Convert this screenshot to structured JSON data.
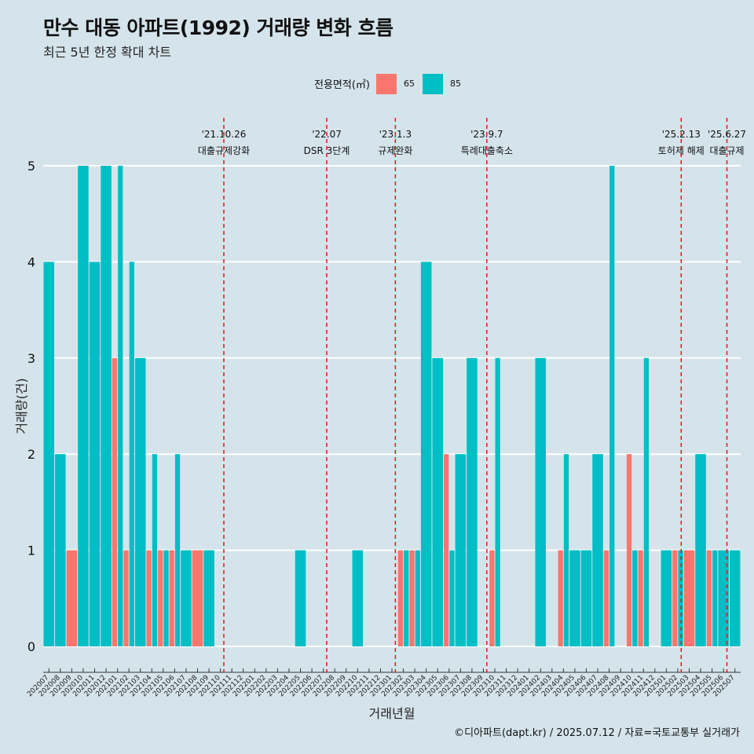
{
  "title": "만수 대동 아파트(1992) 거래량 변화 흐름",
  "subtitle": "최근 5년 한정 확대 차트",
  "caption": "©디아파트(dapt.kr) / 2025.07.12 / 자료=국토교통부 실거래가",
  "legend": {
    "title": "전용면적(㎡)",
    "items": [
      {
        "label": "65",
        "color": "#f8766d"
      },
      {
        "label": "85",
        "color": "#00bfc4"
      }
    ]
  },
  "chart_data": {
    "type": "bar",
    "xlabel": "거래년월",
    "ylabel": "거래량(건)",
    "ylim": [
      0,
      5
    ],
    "yticks": [
      "0",
      "1",
      "2",
      "3",
      "4",
      "5"
    ],
    "categories": [
      "202007",
      "202008",
      "202009",
      "202010",
      "202011",
      "202012",
      "202101",
      "202102",
      "202103",
      "202104",
      "202105",
      "202106",
      "202107",
      "202108",
      "202109",
      "202110",
      "202111",
      "202112",
      "202201",
      "202202",
      "202203",
      "202204",
      "202205",
      "202206",
      "202207",
      "202208",
      "202209",
      "202210",
      "202211",
      "202212",
      "202301",
      "202302",
      "202303",
      "202304",
      "202305",
      "202306",
      "202307",
      "202308",
      "202309",
      "202310",
      "202311",
      "202312",
      "202401",
      "202402",
      "202403",
      "202404",
      "202405",
      "202406",
      "202407",
      "202408",
      "202409",
      "202410",
      "202411",
      "202412",
      "202501",
      "202502",
      "202503",
      "202504",
      "202505",
      "202506",
      "202507"
    ],
    "series": [
      {
        "name": "65",
        "color": "#f8766d",
        "values": [
          0,
          0,
          1,
          0,
          0,
          0,
          3,
          1,
          0,
          1,
          1,
          1,
          0,
          1,
          0,
          0,
          0,
          0,
          0,
          0,
          0,
          0,
          0,
          0,
          0,
          0,
          0,
          0,
          0,
          0,
          0,
          1,
          1,
          0,
          0,
          2,
          0,
          0,
          0,
          1,
          0,
          0,
          0,
          0,
          0,
          1,
          0,
          0,
          0,
          1,
          0,
          2,
          1,
          0,
          0,
          1,
          1,
          0,
          1,
          0,
          0
        ]
      },
      {
        "name": "85",
        "color": "#00bfc4",
        "values": [
          4,
          2,
          0,
          5,
          4,
          5,
          5,
          4,
          3,
          2,
          1,
          2,
          1,
          0,
          1,
          0,
          0,
          0,
          0,
          0,
          0,
          0,
          1,
          0,
          0,
          0,
          0,
          1,
          0,
          0,
          0,
          1,
          1,
          4,
          3,
          1,
          2,
          3,
          0,
          3,
          0,
          0,
          0,
          3,
          0,
          2,
          1,
          1,
          2,
          5,
          0,
          1,
          3,
          0,
          1,
          1,
          0,
          2,
          1,
          1,
          1
        ]
      }
    ],
    "events": [
      {
        "date": "'21.10.26",
        "label": "대출규제강화",
        "after": "202110"
      },
      {
        "date": "'22.07",
        "label": "DSR 3단계",
        "after": "202207"
      },
      {
        "date": "'23.1.3",
        "label": "규제완화",
        "after": "202301"
      },
      {
        "date": "'23.9.7",
        "label": "특례대출축소",
        "after": "202309"
      },
      {
        "date": "'25.2.13",
        "label": "토허제 해제",
        "after": "202502"
      },
      {
        "date": "'25.6.27",
        "label": "대출규제",
        "after": "202506"
      }
    ]
  }
}
